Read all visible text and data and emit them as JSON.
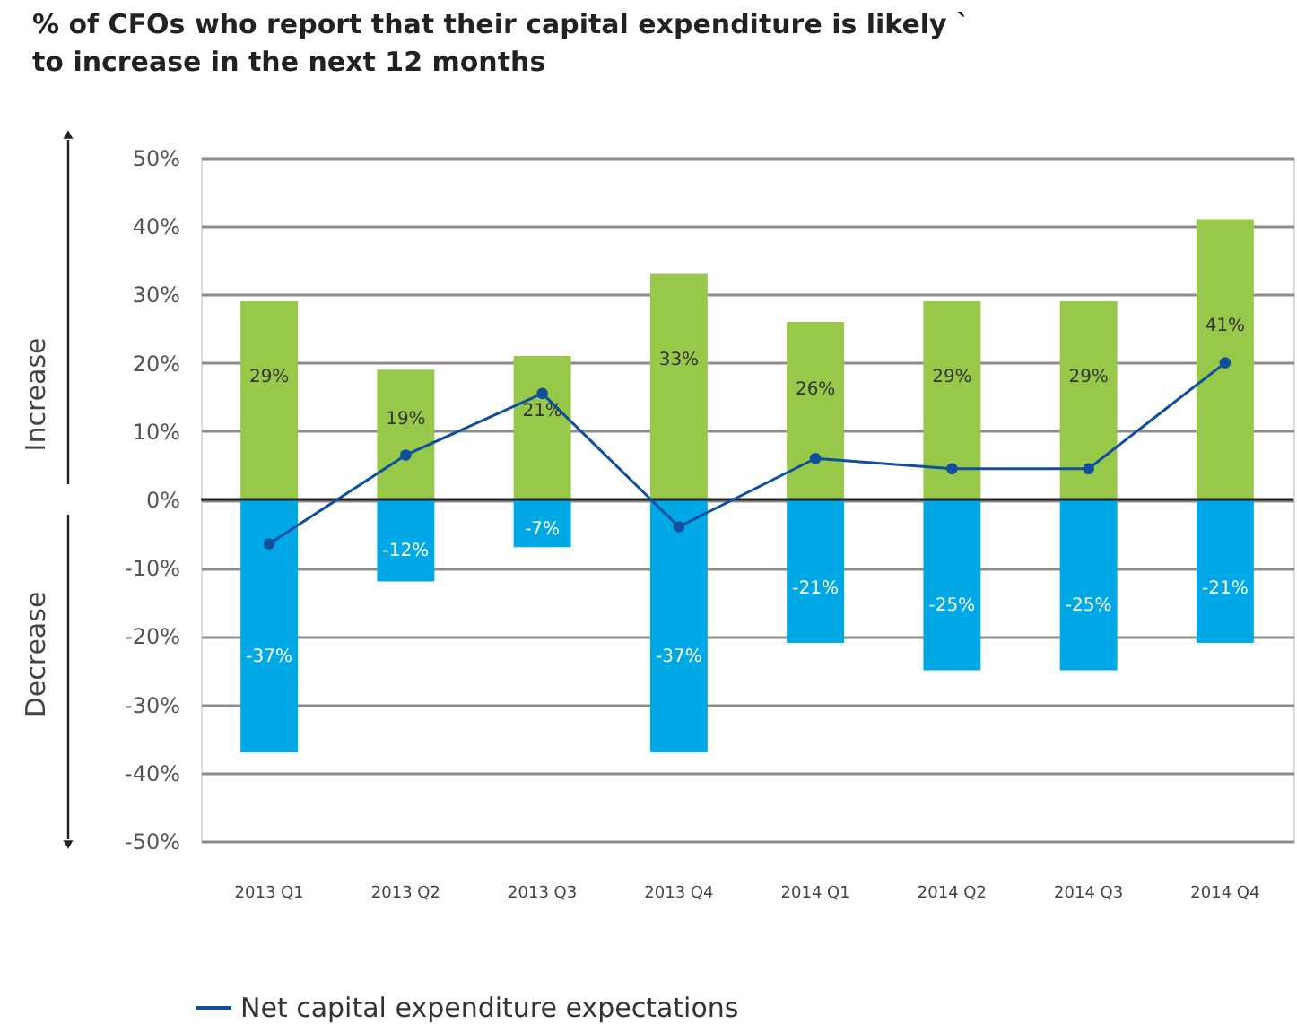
{
  "chart_data": {
    "type": "bar",
    "title": "% of CFOs who report that their capital expenditure is likely `\nto increase in the next 12 months",
    "categories": [
      "2013 Q1",
      "2013 Q2",
      "2013 Q3",
      "2013 Q4",
      "2014 Q1",
      "2014 Q2",
      "2014 Q3",
      "2014 Q4"
    ],
    "stacked": true,
    "series": [
      {
        "color": "#97c849",
        "values": [
          29,
          19,
          21,
          33,
          26,
          29,
          29,
          41
        ],
        "value_labels": [
          "29%",
          "19%",
          "21%",
          "33%",
          "26%",
          "29%",
          "29%",
          "41%"
        ]
      },
      {
        "color": "#00a9e6",
        "values": [
          -37,
          -12,
          -7,
          -37,
          -21,
          -25,
          -25,
          -21
        ],
        "value_labels": [
          "-37%",
          "-12%",
          "-7%",
          "-37%",
          "-21%",
          "-25%",
          "-25%",
          "-21%"
        ]
      },
      {
        "type": "line",
        "name": "Net capital expenditure expectations",
        "color": "#0f4f9e",
        "marker": "circle",
        "values": [
          -6.5,
          6.5,
          15.5,
          -4,
          6,
          4.5,
          4.5,
          20
        ]
      }
    ],
    "ylim": [
      -50,
      50
    ],
    "yticks": [
      {
        "value": -50,
        "label": "-50%"
      },
      {
        "value": -40,
        "label": "-40%"
      },
      {
        "value": -30,
        "label": "-30%"
      },
      {
        "value": -20,
        "label": "-20%"
      },
      {
        "value": -10,
        "label": "-10%"
      },
      {
        "value": 0,
        "label": "0%"
      },
      {
        "value": 10,
        "label": "10%"
      },
      {
        "value": 20,
        "label": "20%"
      },
      {
        "value": 30,
        "label": "30%"
      },
      {
        "value": 40,
        "label": "40%"
      },
      {
        "value": 50,
        "label": "50%"
      }
    ],
    "grid": "y",
    "legend": "bottom left",
    "annotations": [
      "Increase",
      "Decrease"
    ]
  }
}
